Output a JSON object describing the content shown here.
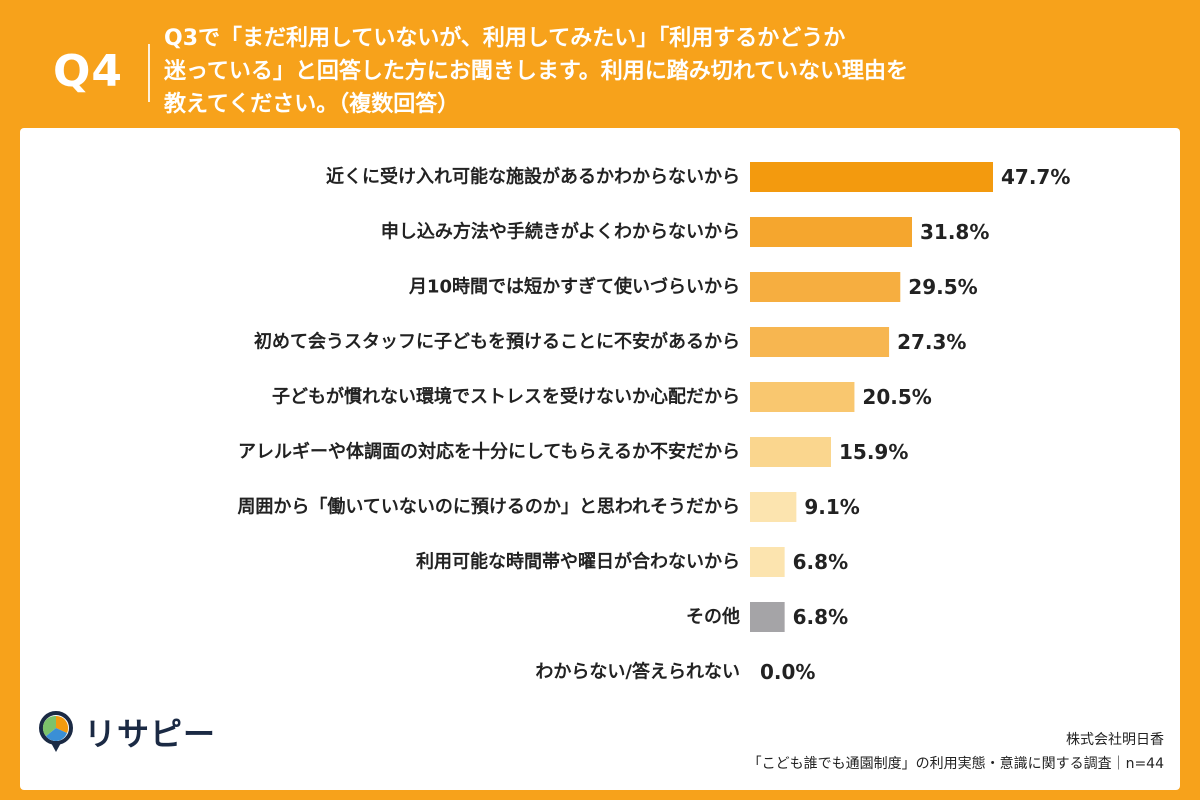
{
  "question": {
    "number": "Q4",
    "lines": [
      "Q3で「まだ利用していないが、利用してみたい」「利用するかどうか",
      "迷っている」と回答した方にお聞きします。利用に踏み切れていない理由を",
      "教えてください。（複数回答）"
    ]
  },
  "chart_data": {
    "type": "bar",
    "orientation": "horizontal",
    "categories": [
      "近くに受け入れ可能な施設があるかわからないから",
      "申し込み方法や手続きがよくわからないから",
      "月10時間では短かすぎて使いづらいから",
      "初めて会うスタッフに子どもを預けることに不安があるから",
      "子どもが慣れない環境でストレスを受けないか心配だから",
      "アレルギーや体調面の対応を十分にしてもらえるか不安だから",
      "周囲から「働いていないのに預けるのか」と思われそうだから",
      "利用可能な時間帯や曜日が合わないから",
      "その他",
      "わからない/答えられない"
    ],
    "values": [
      47.7,
      31.8,
      29.5,
      27.3,
      20.5,
      15.9,
      9.1,
      6.8,
      6.8,
      0.0
    ],
    "value_labels": [
      "47.7%",
      "31.8%",
      "29.5%",
      "27.3%",
      "20.5%",
      "15.9%",
      "9.1%",
      "6.8%",
      "6.8%",
      "0.0%"
    ],
    "colors": [
      "#F39A0E",
      "#F5A62E",
      "#F6AE40",
      "#F7B650",
      "#F9C76F",
      "#FAD68E",
      "#FCE4AF",
      "#FCE4AF",
      "#A5A4A7",
      "#FCE4AF"
    ],
    "grid": false
  },
  "brand": {
    "logo_text": "リサピー"
  },
  "credit": {
    "company": "株式会社明日香",
    "survey": "「こども誰でも通園制度」の利用実態・意識に関する調査｜n=44"
  }
}
